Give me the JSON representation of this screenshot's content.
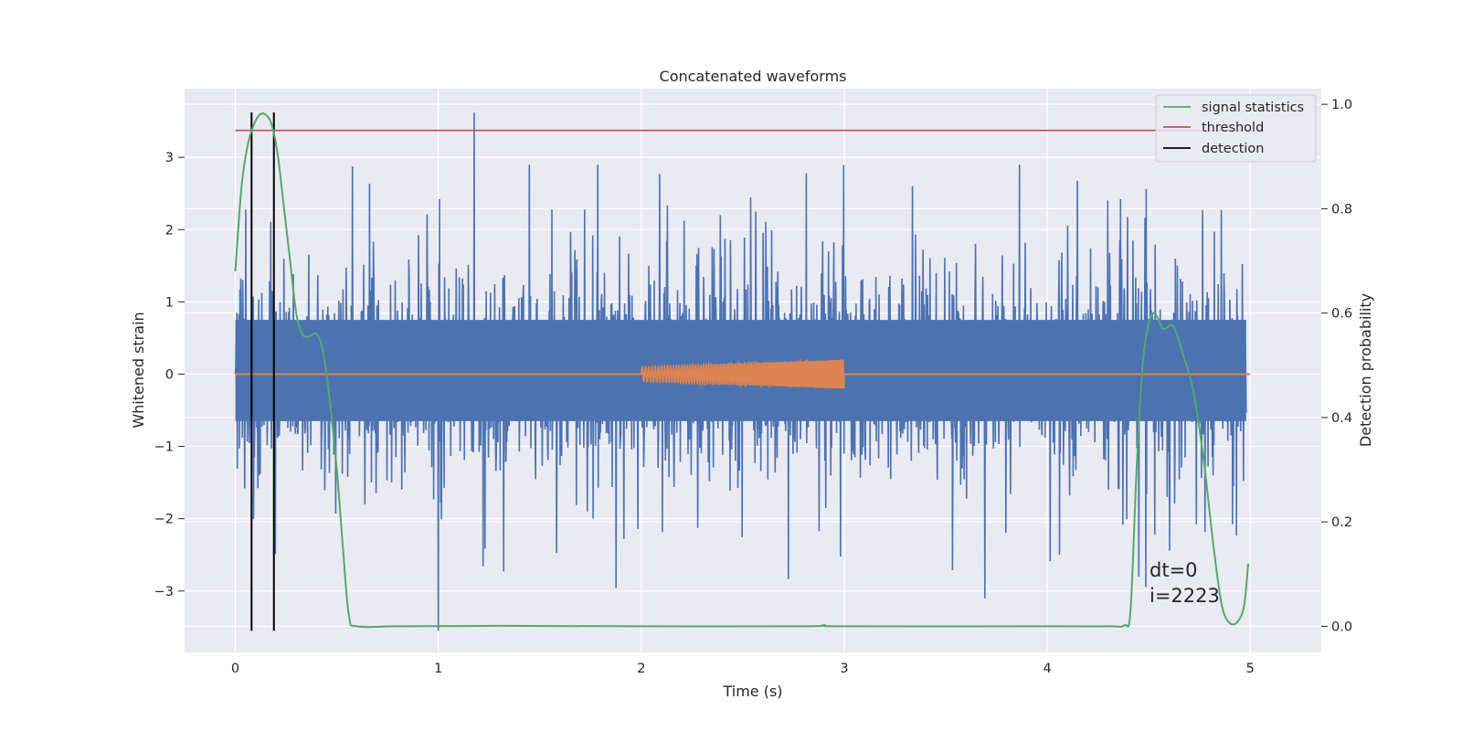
{
  "chart_data": {
    "type": "line",
    "title": "Concatenated waveforms",
    "xlabel": "Time (s)",
    "ylabel": "Whitened strain",
    "ylabel_right": "Detection probability",
    "xlim": [
      -0.25,
      5.35
    ],
    "ylim": [
      -3.85,
      3.95
    ],
    "ylim_right": [
      -0.05,
      1.03
    ],
    "x_ticks": [
      0,
      1,
      2,
      3,
      4,
      5
    ],
    "y_ticks": [
      -3,
      -2,
      -1,
      0,
      1,
      2,
      3
    ],
    "y_ticks_right": [
      0.0,
      0.2,
      0.4,
      0.6,
      0.8,
      1.0
    ],
    "x_tick_labels": [
      "0",
      "1",
      "2",
      "3",
      "4",
      "5"
    ],
    "y_tick_labels": [
      "−3",
      "−2",
      "−1",
      "0",
      "1",
      "2",
      "3"
    ],
    "y_tick_labels_right": [
      "0.0",
      "0.2",
      "0.4",
      "0.6",
      "0.8",
      "1.0"
    ],
    "grid": true,
    "legend_position": "top-right",
    "colors": {
      "strain": "#4c72b0",
      "injection": "#dd8452",
      "signal_statistics": "#55a868",
      "threshold": "#c44e52",
      "detection": "#000000",
      "background": "#eaeaf2"
    },
    "series": [
      {
        "name": "signal statistics",
        "axis": "right",
        "x": [
          0,
          0.03,
          0.06,
          0.09,
          0.12,
          0.15,
          0.18,
          0.21,
          0.24,
          0.27,
          0.3,
          0.33,
          0.36,
          0.4,
          0.43,
          0.46,
          0.5,
          0.53,
          0.56,
          0.6,
          0.8,
          1.3,
          2.0,
          2.8,
          2.9,
          3.0,
          4.0,
          4.3,
          4.38,
          4.41,
          4.44,
          4.47,
          4.5,
          4.53,
          4.57,
          4.62,
          4.67,
          4.72,
          4.77,
          4.82,
          4.86,
          4.9,
          4.94,
          4.97,
          4.99
        ],
        "y": [
          0.68,
          0.84,
          0.92,
          0.96,
          0.98,
          0.98,
          0.96,
          0.9,
          0.8,
          0.7,
          0.6,
          0.56,
          0.555,
          0.56,
          0.53,
          0.45,
          0.3,
          0.15,
          0.02,
          0.0,
          0.0,
          0.001,
          0.0,
          0.0,
          0.002,
          0.0,
          0.0,
          0.0,
          0.002,
          0.03,
          0.3,
          0.5,
          0.58,
          0.6,
          0.57,
          0.575,
          0.52,
          0.45,
          0.32,
          0.15,
          0.04,
          0.006,
          0.01,
          0.04,
          0.12
        ]
      },
      {
        "name": "threshold",
        "axis": "right",
        "x": [
          0,
          5
        ],
        "y": [
          0.95,
          0.95
        ]
      },
      {
        "name": "detection",
        "axis": "left",
        "x_positions": [
          0.08,
          0.19
        ],
        "y": [
          -3.55,
          3.62
        ]
      }
    ],
    "unlabeled_series": {
      "strain": {
        "axis": "left",
        "x_range": [
          0,
          4.98
        ],
        "core_band": [
          -0.65,
          0.75
        ],
        "max": 3.62,
        "min": -3.55
      },
      "injection": {
        "axis": "left",
        "x": [
          0,
          2.0,
          2.0,
          3.0,
          3.0,
          5.0
        ],
        "envelope_top": [
          0,
          0,
          0.1,
          0.2,
          0,
          0
        ],
        "envelope_bottom": [
          0,
          0,
          -0.1,
          -0.2,
          0,
          0
        ],
        "chirp_x_range": [
          2.0,
          3.0
        ],
        "chirp_amplitude_range": [
          0.1,
          0.2
        ]
      }
    },
    "annotations": [
      "dt=0",
      "i=2223"
    ]
  }
}
